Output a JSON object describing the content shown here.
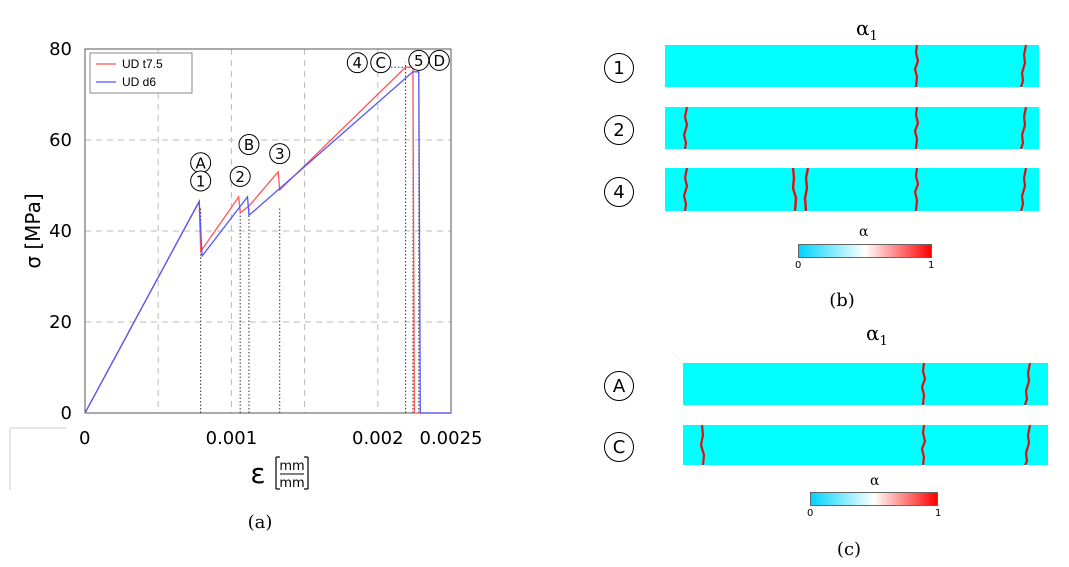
{
  "chart_data": {
    "type": "line",
    "x_label": "ε",
    "x_unit_num": "mm",
    "x_unit_den": "mm",
    "y_label": "σ [MPa]",
    "xlim": [
      0,
      0.0025
    ],
    "ylim": [
      0,
      80
    ],
    "x_ticks": [
      {
        "v": 0,
        "t": "0"
      },
      {
        "v": 0.001,
        "t": "0.001"
      },
      {
        "v": 0.002,
        "t": "0.002"
      },
      {
        "v": 0.0025,
        "t": "0.0025"
      }
    ],
    "y_ticks": [
      {
        "v": 0,
        "t": "0"
      },
      {
        "v": 20,
        "t": "20"
      },
      {
        "v": 40,
        "t": "40"
      },
      {
        "v": 60,
        "t": "60"
      },
      {
        "v": 80,
        "t": "80"
      }
    ],
    "grid_x": [
      0.0005,
      0.001,
      0.0015,
      0.002
    ],
    "grid_y": [
      20,
      40,
      60
    ],
    "legend_position": "top-left",
    "series": [
      {
        "name": "UD t7.5",
        "color": "#ff5555",
        "x": [
          0,
          0.00078,
          0.00079,
          0.00105,
          0.00106,
          0.00108,
          0.00112,
          0.00132,
          0.00133,
          0.00219,
          0.00224,
          0.00225,
          0.0025
        ],
        "y": [
          0,
          46.5,
          35.5,
          47.5,
          44,
          44.5,
          45.5,
          53,
          49,
          76,
          76,
          0,
          0
        ]
      },
      {
        "name": "UD d6",
        "color": "#5555ff",
        "x": [
          0,
          0.00078,
          0.0008,
          0.00111,
          0.00112,
          0.00114,
          0.00224,
          0.00228,
          0.00229,
          0.0025
        ],
        "y": [
          0,
          46.5,
          34.5,
          47.5,
          43.5,
          44,
          75,
          75,
          0,
          0
        ]
      }
    ],
    "markers": [
      {
        "label": "A",
        "x": 0.00079,
        "y": 55
      },
      {
        "label": "1",
        "x": 0.00079,
        "y": 51
      },
      {
        "label": "2",
        "x": 0.00106,
        "y": 52
      },
      {
        "label": "B",
        "x": 0.00112,
        "y": 59
      },
      {
        "label": "3",
        "x": 0.00133,
        "y": 57
      },
      {
        "label": "4",
        "x": 0.00186,
        "y": 77
      },
      {
        "label": "C",
        "x": 0.00202,
        "y": 77
      },
      {
        "label": "5",
        "x": 0.00228,
        "y": 77.5
      },
      {
        "label": "D",
        "x": 0.00242,
        "y": 77.5
      }
    ],
    "dotted_verticals": [
      0.00079,
      0.00106,
      0.00112,
      0.00133,
      0.00219,
      0.00224,
      0.00228
    ],
    "dotted_horizontal": {
      "y": 76,
      "x0": 0.00197,
      "x1": 0.00224
    }
  },
  "captions": {
    "a": "(a)",
    "b": "(b)",
    "c": "(c)"
  },
  "panel_b": {
    "title_main": "α",
    "title_sub": "1",
    "rows": [
      {
        "label": "1"
      },
      {
        "label": "2"
      },
      {
        "label": "4"
      }
    ],
    "colorbar": {
      "label": "α",
      "min": "0",
      "max": "1"
    }
  },
  "panel_c": {
    "title_main": "α",
    "title_sub": "1",
    "rows": [
      {
        "label": "A"
      },
      {
        "label": "C"
      }
    ],
    "colorbar": {
      "label": "α",
      "min": "0",
      "max": "1"
    }
  }
}
